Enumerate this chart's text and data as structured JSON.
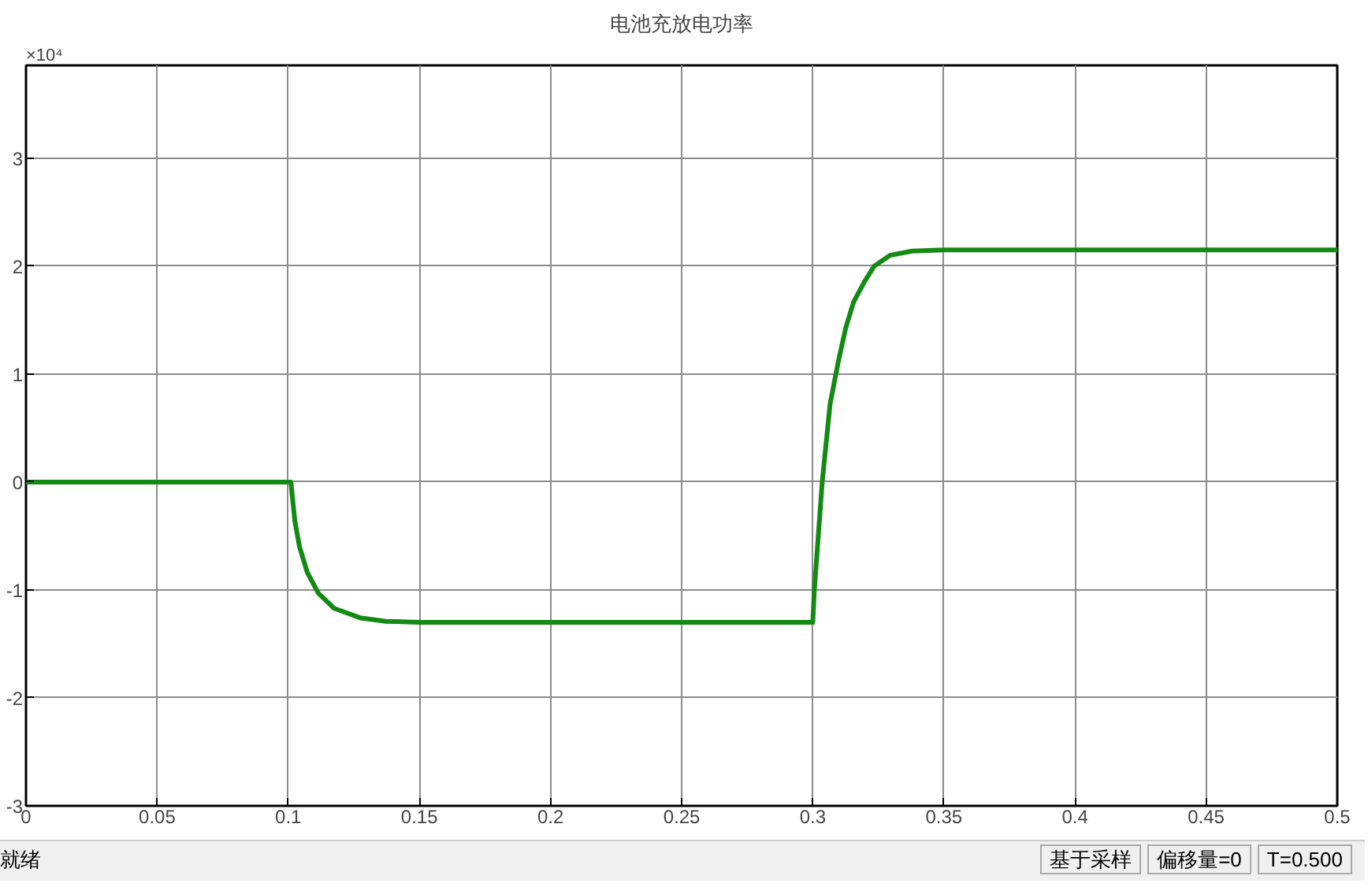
{
  "chart_data": {
    "type": "line",
    "title": "电池充放电功率",
    "x": [
      0,
      0.05,
      0.1,
      0.101,
      0.1025,
      0.1043,
      0.1073,
      0.1115,
      0.1175,
      0.1277,
      0.1373,
      0.15,
      0.2,
      0.25,
      0.3,
      0.3006,
      0.3036,
      0.3066,
      0.3096,
      0.3126,
      0.3156,
      0.3198,
      0.3234,
      0.3294,
      0.3378,
      0.35,
      0.4,
      0.45,
      0.5
    ],
    "series": [
      {
        "color": "#138a13",
        "values": [
          0,
          0,
          0,
          0,
          -0.36,
          -0.6,
          -0.84,
          -1.03,
          -1.17,
          -1.26,
          -1.29,
          -1.3,
          -1.3,
          -1.3,
          -1.3,
          -1.0,
          0,
          0.72,
          1.1,
          1.43,
          1.67,
          1.86,
          2.0,
          2.1,
          2.14,
          2.15,
          2.15,
          2.15,
          2.15
        ]
      }
    ],
    "xlim": [
      0,
      0.5
    ],
    "xticks": [
      0,
      0.05,
      0.1,
      0.15,
      0.2,
      0.25,
      0.3,
      0.35,
      0.4,
      0.45,
      0.5
    ],
    "ylim": [
      -3,
      3.86
    ],
    "yticks": [
      -3,
      -2,
      -1,
      0,
      1,
      2,
      3
    ],
    "grid": true,
    "line_style": "solid",
    "marker": "none",
    "annotations": [
      "×10⁴",
      "就绪",
      "基于采样",
      "偏移量=0",
      "T=0.500"
    ]
  }
}
